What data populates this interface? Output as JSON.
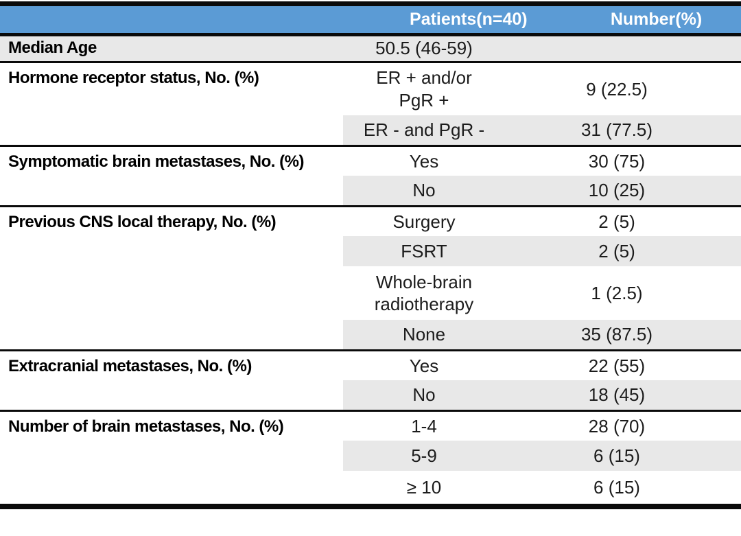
{
  "table": {
    "colors": {
      "header_bg": "#5B9BD5",
      "header_text": "#FFFFFF",
      "row_alt_bg": "#E8E8E8",
      "border": "#0A0A0A"
    },
    "header": {
      "col1": "",
      "col2": "Patients(n=40)",
      "col3": "Number(%)"
    },
    "sections": [
      {
        "label": "Median Age",
        "rows": [
          {
            "value": "50.5 (46-59)",
            "number": ""
          }
        ]
      },
      {
        "label": "Hormone receptor status, No. (%)",
        "rows": [
          {
            "value": "ER + and/or\nPgR +",
            "number": "9 (22.5)"
          },
          {
            "value": "ER - and PgR -",
            "number": "31 (77.5)"
          }
        ]
      },
      {
        "label": "Symptomatic brain metastases, No. (%)",
        "rows": [
          {
            "value": "Yes",
            "number": "30 (75)"
          },
          {
            "value": "No",
            "number": "10 (25)"
          }
        ]
      },
      {
        "label": "Previous CNS local therapy, No. (%)",
        "rows": [
          {
            "value": "Surgery",
            "number": "2 (5)"
          },
          {
            "value": "FSRT",
            "number": "2 (5)"
          },
          {
            "value": "Whole-brain\nradiotherapy",
            "number": "1 (2.5)"
          },
          {
            "value": "None",
            "number": "35 (87.5)"
          }
        ]
      },
      {
        "label": "Extracranial metastases, No. (%)",
        "rows": [
          {
            "value": "Yes",
            "number": "22 (55)"
          },
          {
            "value": "No",
            "number": "18 (45)"
          }
        ]
      },
      {
        "label": "Number of brain metastases, No. (%)",
        "rows": [
          {
            "value": "1-4",
            "number": "28 (70)"
          },
          {
            "value": "5-9",
            "number": "6 (15)"
          },
          {
            "value": "≥ 10",
            "number": "6 (15)"
          }
        ]
      }
    ]
  }
}
